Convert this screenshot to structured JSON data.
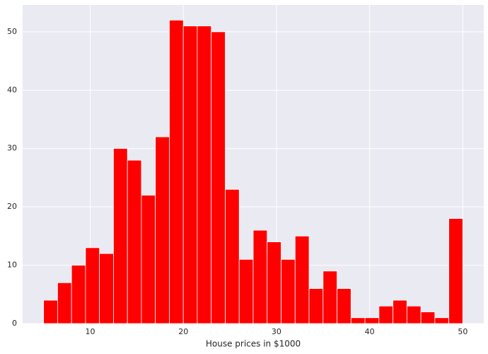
{
  "chart_data": {
    "type": "histogram",
    "xlabel": "House prices in $1000",
    "bins": [
      5,
      6.5,
      8,
      9.5,
      11,
      12.5,
      14,
      15.5,
      17,
      18.5,
      20,
      21.5,
      23,
      24.5,
      26,
      27.5,
      29,
      30.5,
      32,
      33.5,
      35,
      36.5,
      38,
      39.5,
      41,
      42.5,
      44,
      45.5,
      47,
      48.5,
      50
    ],
    "values": [
      4,
      7,
      10,
      13,
      12,
      30,
      28,
      22,
      32,
      52,
      51,
      51,
      50,
      23,
      11,
      16,
      14,
      11,
      15,
      6,
      9,
      6,
      1,
      1,
      3,
      4,
      3,
      2,
      1,
      18
    ],
    "color": "#ff0000",
    "background": "#eaeaf2",
    "grid": true,
    "xlim": [
      2.75,
      52.25
    ],
    "xticks": [
      10,
      20,
      30,
      40,
      50
    ],
    "ylim": [
      0,
      54.6
    ],
    "yticks": [
      0,
      10,
      20,
      30,
      40,
      50
    ]
  }
}
